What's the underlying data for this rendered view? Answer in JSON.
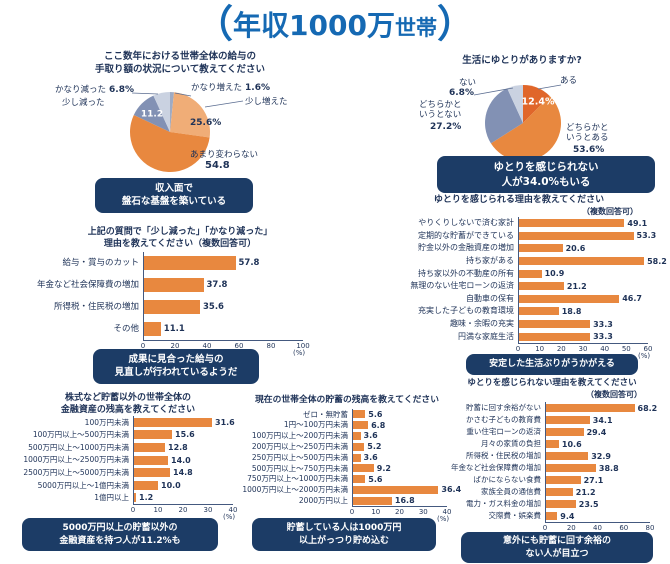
{
  "page": {
    "title": {
      "open": "（",
      "main": "年収1000万",
      "sub": "世帯",
      "close": "）"
    }
  },
  "colors": {
    "bar": "#E8883F",
    "navy": "#1E3257",
    "callout_bg": "#1C3C66",
    "callout_text": "#FFFFFF",
    "title_blue": "#1569B3",
    "axis": "#44597F"
  },
  "chart_data": [
    {
      "id": "takehome-change-pie",
      "type": "pie",
      "title": "ここ数年における世帯全体の給与の\n手取り額の状況について教えてください",
      "slices": [
        {
          "label": "かなり増えた",
          "value": 1.6,
          "display_value": "1.6%",
          "color": "#9FABC4"
        },
        {
          "label": "少し増えた",
          "value": 25.6,
          "display_value": "25.6%",
          "color": "#F0AD77"
        },
        {
          "label": "あまり変わらない",
          "value": 54.8,
          "display_value": "54.8",
          "color": "#E8883F"
        },
        {
          "label": "少し減った",
          "value": 11.2,
          "display_value": "11.2",
          "color": "#8291B4"
        },
        {
          "label": "かなり減った",
          "value": 6.8,
          "display_value": "6.8%",
          "color": "#CAD2E1"
        }
      ],
      "callout": "収入面で\n盤石な基盤を築いている"
    },
    {
      "id": "life-comfort-pie",
      "type": "pie",
      "title": "生活にゆとりがありますか?",
      "slices": [
        {
          "label": "ある",
          "value": 12.4,
          "display_value": "12.4%",
          "color": "#E0662A"
        },
        {
          "label": "どちらかというとある",
          "value": 53.6,
          "display_value": "53.6%",
          "color": "#E8883F"
        },
        {
          "label": "どちらかというとない",
          "value": 27.2,
          "display_value": "27.2%",
          "color": "#8291B4"
        },
        {
          "label": "ない",
          "value": 6.8,
          "display_value": "6.8%",
          "color": "#CAD2E1"
        }
      ],
      "callout": "ゆとりを感じられない\n人が34.0%もいる"
    },
    {
      "id": "decrease-reasons-bar",
      "type": "bar",
      "title": "上記の質問で「少し減った」「かなり減った」\n理由を教えてください（複数回答可）",
      "categories": [
        "給与・賞与のカット",
        "年金など社会保障費の増加",
        "所得税・住民税の増加",
        "その他"
      ],
      "values": [
        57.8,
        37.8,
        35.6,
        11.1
      ],
      "xlim": [
        0,
        100
      ],
      "ticks": [
        0,
        20,
        40,
        60,
        80,
        100
      ],
      "unit": "(%)",
      "callout": "成果に見合った給与の\n見直しが行われているようだ"
    },
    {
      "id": "comfort-reasons-bar",
      "type": "bar",
      "title": "ゆとりを感じられる理由を教えてください",
      "subtitle": "（複数回答可）",
      "categories": [
        "やりくりしないで済む家計",
        "定期的な貯蓄ができている",
        "貯金以外の金融資産の増加",
        "持ち家がある",
        "持ち家以外の不動産の所有",
        "無理のない住宅ローンの返済",
        "自動車の保有",
        "充実した子どもの教育環境",
        "趣味・余暇の充実",
        "円満な家庭生活"
      ],
      "values": [
        49.1,
        53.3,
        20.6,
        58.2,
        10.9,
        21.2,
        46.7,
        18.8,
        33.3,
        33.3
      ],
      "xlim": [
        0,
        60
      ],
      "ticks": [
        0,
        10,
        20,
        30,
        40,
        50,
        60
      ],
      "unit": "(%)",
      "callout": "安定した生活ぶりがうかがえる"
    },
    {
      "id": "non-savings-assets-bar",
      "type": "bar",
      "title": "株式など貯蓄以外の世帯全体の\n金融資産の残高を教えてください",
      "categories": [
        "100万円未満",
        "100万円以上〜500万円未満",
        "500万円以上〜1000万円未満",
        "1000万円以上〜2500万円未満",
        "2500万円以上〜5000万円未満",
        "5000万円以上〜1億円未満",
        "1億円以上"
      ],
      "values": [
        31.6,
        15.6,
        12.8,
        14.0,
        14.8,
        10.0,
        1.2
      ],
      "xlim": [
        0,
        40
      ],
      "ticks": [
        0,
        10,
        20,
        30,
        40
      ],
      "unit": "(%)",
      "callout": "5000万円以上の貯蓄以外の\n金融資産を持つ人が11.2%も"
    },
    {
      "id": "savings-balance-bar",
      "type": "bar",
      "title": "現在の世帯全体の貯蓄の残高を教えてください",
      "categories": [
        "ゼロ・無貯蓄",
        "1円〜100万円未満",
        "100万円以上〜200万円未満",
        "200万円以上〜250万円未満",
        "250万円以上〜500万円未満",
        "500万円以上〜750万円未満",
        "750万円以上〜1000万円未満",
        "1000万円以上〜2000万円未満",
        "2000万円以上"
      ],
      "values": [
        5.6,
        6.8,
        3.6,
        5.2,
        3.6,
        9.2,
        5.6,
        36.4,
        16.8
      ],
      "xlim": [
        0,
        40
      ],
      "ticks": [
        0,
        10,
        20,
        30,
        40
      ],
      "unit": "(%)",
      "callout": "貯蓄している人は1000万円\n以上がっつり貯め込む"
    },
    {
      "id": "no-comfort-reasons-bar",
      "type": "bar",
      "title": "ゆとりを感じられない理由を教えてください",
      "subtitle": "（複数回答可）",
      "categories": [
        "貯蓄に回す余裕がない",
        "かさむ子どもの教育費",
        "重い住宅ローンの返済",
        "月々の家賃の負担",
        "所得税・住民税の増加",
        "年金など社会保障費の増加",
        "ばかにならない食費",
        "家族全員の通信費",
        "電力・ガス料金の増加",
        "交際費・娯楽費"
      ],
      "values": [
        68.2,
        34.1,
        29.4,
        10.6,
        32.9,
        38.8,
        27.1,
        21.2,
        23.5,
        9.4
      ],
      "xlim": [
        0,
        80
      ],
      "ticks": [
        0,
        20,
        40,
        60,
        80
      ],
      "callout": "意外にも貯蓄に回す余裕の\nない人が目立つ"
    }
  ]
}
